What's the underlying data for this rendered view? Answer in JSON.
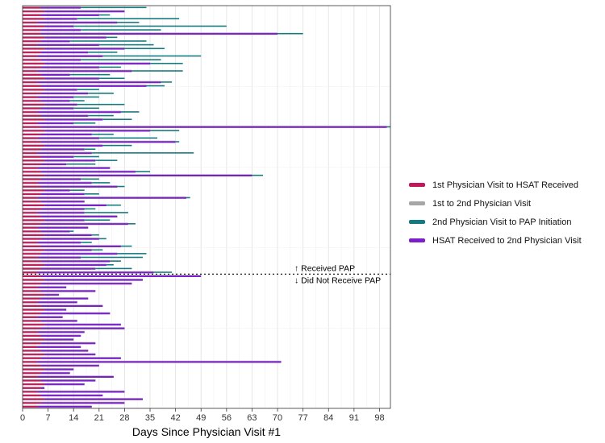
{
  "chart_data": {
    "type": "bar",
    "orientation": "horizontal",
    "stacked": true,
    "xlabel": "Days Since Physician Visit #1",
    "ylabel": "",
    "xlim": [
      0,
      101
    ],
    "xticks": [
      0,
      7,
      14,
      21,
      28,
      35,
      42,
      49,
      56,
      63,
      70,
      77,
      84,
      91,
      98
    ],
    "grid": true,
    "legend_position": "right",
    "colors": {
      "first_to_hsat": "#c2185b",
      "first_to_second": "#a6a6a6",
      "second_to_pap": "#137a7f",
      "hsat_to_second": "#7b1fcc"
    },
    "series": [
      {
        "key": "first_to_hsat",
        "name": "1st Physician Visit to HSAT Received"
      },
      {
        "key": "first_to_second",
        "name": "1st to 2nd Physician Visit"
      },
      {
        "key": "second_to_pap",
        "name": "2nd Physician Visit to PAP Initiation"
      },
      {
        "key": "hsat_to_second",
        "name": "HSAT Received to 2nd Physician Visit"
      }
    ],
    "divider": {
      "above_label": "↑ Received PAP",
      "below_label": "↓  Did Not Receive PAP"
    },
    "received_pap": [
      [
        5,
        16,
        34
      ],
      [
        6,
        28,
        28
      ],
      [
        5,
        21,
        24
      ],
      [
        6,
        15,
        43
      ],
      [
        4,
        26,
        32
      ],
      [
        6,
        14,
        56
      ],
      [
        5,
        16,
        38
      ],
      [
        5,
        70,
        77
      ],
      [
        6,
        23,
        26
      ],
      [
        5,
        13,
        34
      ],
      [
        4,
        21,
        36
      ],
      [
        6,
        28,
        39
      ],
      [
        5,
        18,
        26
      ],
      [
        4,
        22,
        49
      ],
      [
        5,
        16,
        38
      ],
      [
        6,
        35,
        44
      ],
      [
        5,
        21,
        27
      ],
      [
        4,
        30,
        44
      ],
      [
        5,
        13,
        24
      ],
      [
        6,
        21,
        28
      ],
      [
        4,
        38,
        41
      ],
      [
        5,
        34,
        39
      ],
      [
        6,
        15,
        21
      ],
      [
        5,
        18,
        25
      ],
      [
        4,
        14,
        21
      ],
      [
        5,
        13,
        17
      ],
      [
        6,
        15,
        28
      ],
      [
        5,
        14,
        21
      ],
      [
        4,
        27,
        32
      ],
      [
        5,
        18,
        25
      ],
      [
        6,
        22,
        30
      ],
      [
        4,
        14,
        20
      ],
      [
        5,
        100,
        101
      ],
      [
        6,
        35,
        43
      ],
      [
        5,
        19,
        25
      ],
      [
        4,
        21,
        37
      ],
      [
        5,
        42,
        43
      ],
      [
        6,
        22,
        30
      ],
      [
        5,
        17,
        20
      ],
      [
        4,
        19,
        47
      ],
      [
        5,
        14,
        21
      ],
      [
        6,
        20,
        26
      ],
      [
        5,
        12,
        20
      ],
      [
        4,
        24,
        21
      ],
      [
        5,
        31,
        35
      ],
      [
        6,
        63,
        66
      ],
      [
        5,
        16,
        21
      ],
      [
        4,
        19,
        24
      ],
      [
        5,
        26,
        28
      ],
      [
        6,
        13,
        17
      ],
      [
        5,
        17,
        21
      ],
      [
        4,
        45,
        46
      ],
      [
        5,
        17,
        10
      ],
      [
        6,
        23,
        27
      ],
      [
        5,
        17,
        20
      ],
      [
        4,
        17,
        29
      ],
      [
        5,
        26,
        25
      ],
      [
        6,
        17,
        24
      ],
      [
        5,
        29,
        31
      ],
      [
        4,
        18,
        18
      ],
      [
        5,
        13,
        14
      ],
      [
        6,
        19,
        21
      ],
      [
        5,
        21,
        23
      ],
      [
        4,
        16,
        19
      ],
      [
        5,
        27,
        30
      ],
      [
        6,
        19,
        22
      ],
      [
        5,
        26,
        34
      ],
      [
        4,
        16,
        33
      ],
      [
        5,
        24,
        27
      ],
      [
        6,
        23,
        25
      ],
      [
        5,
        20,
        30
      ],
      [
        4,
        36,
        41
      ]
    ],
    "did_not_receive_pap": [
      [
        5,
        49
      ],
      [
        6,
        33
      ],
      [
        5,
        30
      ],
      [
        4,
        12
      ],
      [
        5,
        20
      ],
      [
        6,
        10
      ],
      [
        5,
        18
      ],
      [
        4,
        15
      ],
      [
        5,
        22
      ],
      [
        6,
        12
      ],
      [
        5,
        24
      ],
      [
        4,
        11
      ],
      [
        5,
        15
      ],
      [
        6,
        27
      ],
      [
        5,
        28
      ],
      [
        4,
        17
      ],
      [
        5,
        16
      ],
      [
        6,
        14
      ],
      [
        5,
        20
      ],
      [
        4,
        16
      ],
      [
        5,
        18
      ],
      [
        6,
        20
      ],
      [
        5,
        27
      ],
      [
        4,
        71
      ],
      [
        5,
        21
      ],
      [
        6,
        14
      ],
      [
        5,
        13
      ],
      [
        4,
        25
      ],
      [
        5,
        20
      ],
      [
        6,
        17
      ],
      [
        5,
        6
      ],
      [
        4,
        28
      ],
      [
        5,
        22
      ],
      [
        6,
        33
      ],
      [
        5,
        28
      ],
      [
        4,
        19
      ]
    ]
  }
}
